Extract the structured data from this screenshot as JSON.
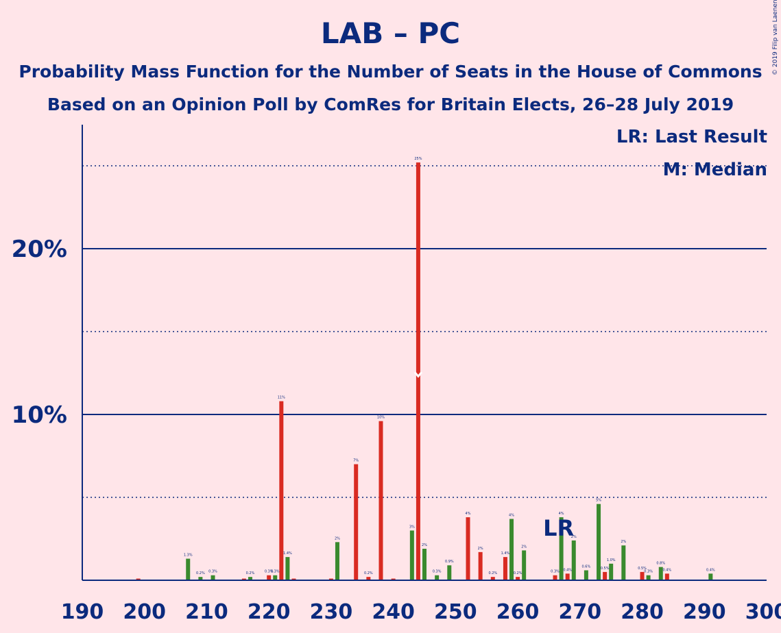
{
  "title": "LAB – PC",
  "subtitle1": "Probability Mass Function for the Number of Seats in the House of Commons",
  "subtitle2": "Based on an Opinion Poll by ComRes for Britain Elects, 26–28 July 2019",
  "copyright": "© 2019 Filip van Laenen",
  "legend": {
    "lr": "LR: Last Result",
    "median": "M: Median"
  },
  "markers": {
    "last_result_label": "LR",
    "last_result_seat": 267,
    "median_seat": 244
  },
  "colors": {
    "background": "#ffe5e9",
    "text": "#0b2a7d",
    "red": "#d92b22",
    "green": "#3a8a2e",
    "axis": "#0b2a7d"
  },
  "chart_data": {
    "type": "bar",
    "xlim": [
      190,
      300
    ],
    "ylim": [
      0,
      27
    ],
    "x_ticks": [
      190,
      200,
      210,
      220,
      230,
      240,
      250,
      260,
      270,
      280,
      290,
      300
    ],
    "y_ticks": [
      {
        "value": 10,
        "label": "10%"
      },
      {
        "value": 20,
        "label": "20%"
      }
    ],
    "dotted_gridlines": [
      5,
      15,
      25
    ],
    "solid_gridlines": [
      10,
      20
    ],
    "series": [
      {
        "color": "red",
        "points": [
          [
            199,
            0.1
          ],
          [
            216,
            0.1
          ],
          [
            220,
            0.3
          ],
          [
            222,
            10.8
          ],
          [
            224,
            0.1
          ],
          [
            230,
            0.1
          ],
          [
            234,
            7.0
          ],
          [
            236,
            0.2
          ],
          [
            238,
            9.6
          ],
          [
            240,
            0.1
          ],
          [
            244,
            25.2
          ],
          [
            252,
            3.8
          ],
          [
            254,
            1.7
          ],
          [
            256,
            0.2
          ],
          [
            258,
            1.4
          ],
          [
            260,
            0.2
          ],
          [
            266,
            0.3
          ],
          [
            268,
            0.4
          ],
          [
            274,
            0.5
          ],
          [
            280,
            0.5
          ],
          [
            284,
            0.4
          ]
        ]
      },
      {
        "color": "green",
        "points": [
          [
            207,
            1.3
          ],
          [
            209,
            0.2
          ],
          [
            211,
            0.3
          ],
          [
            217,
            0.2
          ],
          [
            221,
            0.3
          ],
          [
            223,
            1.4
          ],
          [
            231,
            2.3
          ],
          [
            243,
            3.0
          ],
          [
            245,
            1.9
          ],
          [
            247,
            0.3
          ],
          [
            249,
            0.9
          ],
          [
            259,
            3.7
          ],
          [
            261,
            1.8
          ],
          [
            267,
            3.8
          ],
          [
            269,
            2.4
          ],
          [
            271,
            0.6
          ],
          [
            273,
            4.6
          ],
          [
            275,
            1.0
          ],
          [
            277,
            2.1
          ],
          [
            281,
            0.3
          ],
          [
            283,
            0.8
          ],
          [
            291,
            0.4
          ]
        ]
      }
    ],
    "bar_labels": [
      [
        207,
        "1.3%"
      ],
      [
        209,
        "0.2%"
      ],
      [
        211,
        "0.3%"
      ],
      [
        217,
        "0.2%"
      ],
      [
        220,
        "0.3%"
      ],
      [
        221,
        "0.3%"
      ],
      [
        222,
        "11%"
      ],
      [
        223,
        "1.4%"
      ],
      [
        231,
        "2%"
      ],
      [
        234,
        "7%"
      ],
      [
        236,
        "0.2%"
      ],
      [
        238,
        "10%"
      ],
      [
        243,
        "3%"
      ],
      [
        244,
        "25%"
      ],
      [
        245,
        "2%"
      ],
      [
        247,
        "0.3%"
      ],
      [
        249,
        "0.9%"
      ],
      [
        252,
        "4%"
      ],
      [
        254,
        "2%"
      ],
      [
        256,
        "0.2%"
      ],
      [
        258,
        "1.4%"
      ],
      [
        259,
        "4%"
      ],
      [
        260,
        "0.2%"
      ],
      [
        261,
        "2%"
      ],
      [
        266,
        "0.3%"
      ],
      [
        267,
        "4%"
      ],
      [
        268,
        "0.4%"
      ],
      [
        269,
        "2%"
      ],
      [
        271,
        "0.6%"
      ],
      [
        273,
        "5%"
      ],
      [
        274,
        "0.5%"
      ],
      [
        275,
        "1.0%"
      ],
      [
        277,
        "2%"
      ],
      [
        280,
        "0.5%"
      ],
      [
        281,
        "0.3%"
      ],
      [
        283,
        "0.8%"
      ],
      [
        284,
        "0.4%"
      ],
      [
        291,
        "0.4%"
      ]
    ]
  }
}
